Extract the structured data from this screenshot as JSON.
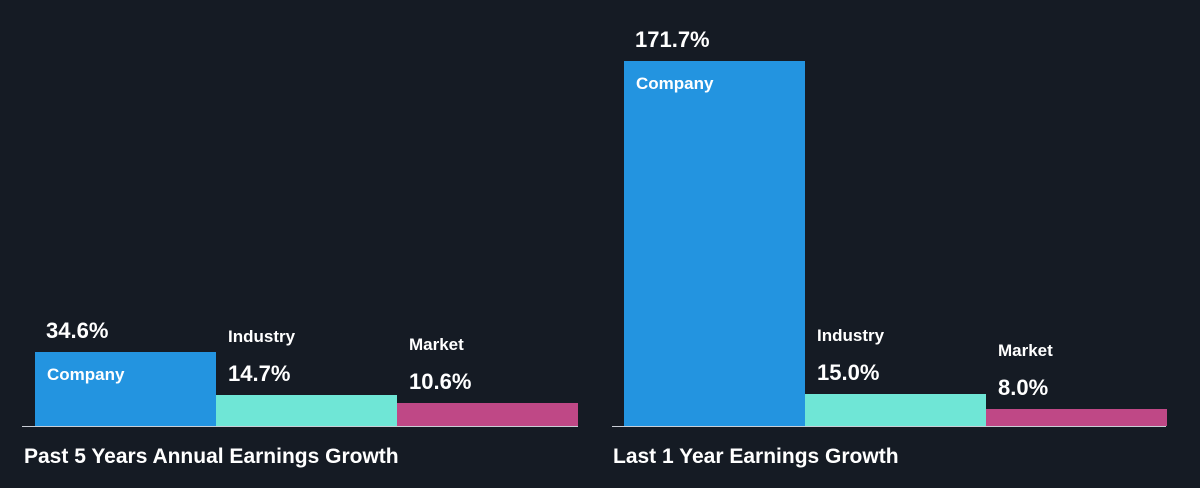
{
  "colors": {
    "background": "#151b24",
    "company": "#2394e0",
    "industry": "#6fe6d6",
    "market": "#bf4886",
    "text": "#ffffff",
    "axis": "#c9ced6"
  },
  "chart_data": [
    {
      "type": "bar",
      "title": "Past 5 Years Annual Earnings Growth",
      "categories": [
        "Company",
        "Industry",
        "Market"
      ],
      "values": [
        34.6,
        14.7,
        10.6
      ],
      "labels": [
        "34.6%",
        "14.7%",
        "10.6%"
      ],
      "unit": "%",
      "ylim": [
        0,
        171.7
      ]
    },
    {
      "type": "bar",
      "title": "Last 1 Year Earnings Growth",
      "categories": [
        "Company",
        "Industry",
        "Market"
      ],
      "values": [
        171.7,
        15.0,
        8.0
      ],
      "labels": [
        "171.7%",
        "15.0%",
        "8.0%"
      ],
      "unit": "%",
      "ylim": [
        0,
        171.7
      ]
    }
  ]
}
